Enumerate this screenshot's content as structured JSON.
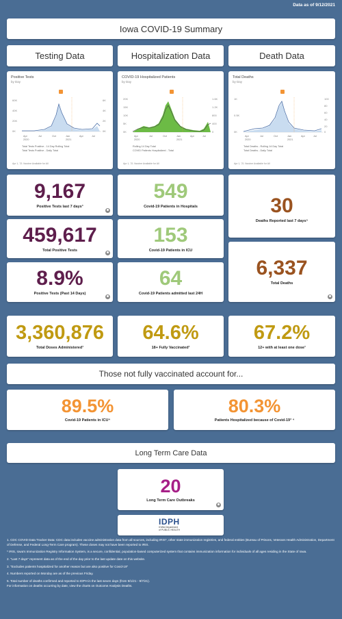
{
  "as_of": "Data as of 9/12/2021",
  "title": "Iowa COVID-19 Summary",
  "sections": {
    "testing": "Testing Data",
    "hospitalization": "Hospitalization Data",
    "death": "Death Data"
  },
  "charts": {
    "testing": {
      "title": "Positive Tests",
      "sub": "by Day",
      "legend1": "Total Tests Positive - 14 Day Rolling Total",
      "legend2": "Total Tests Positive - Daily Total",
      "note": "Apr 1, '21 Vaccine Available for All",
      "yleft": [
        "60K",
        "40K",
        "20K",
        "0K"
      ],
      "yright": [
        "6K",
        "4K",
        "2K",
        "0K"
      ],
      "xlabels": [
        "Apr\n2020",
        "Jul",
        "Oct",
        "Jan\n2021",
        "Apr",
        "Jul"
      ]
    },
    "hospital": {
      "title": "COVID-19 Hospitalized Patients",
      "sub": "by Day",
      "legend1": "Rolling 14 Day Total",
      "legend2": "COVID Patients Hospitalized - Total",
      "note": "Apr 1, '21 Vaccine Available for All",
      "yleft": [
        "20K",
        "15K",
        "10K",
        "5K",
        "0K"
      ],
      "yright": [
        "1.6K",
        "1.2K",
        "800",
        "400",
        "0"
      ],
      "xlabels": [
        "Apr\n2020",
        "Jul",
        "Oct",
        "Jan\n2021",
        "Apr",
        "Jul"
      ]
    },
    "death": {
      "title": "Total Deaths",
      "sub": "by Day",
      "legend1": "Total Deaths - Rolling 14 Day Total",
      "legend2": "Total Deaths - Daily Total",
      "note": "Apr 1, '21 Vaccine Available for All",
      "yleft": [
        "1K",
        "0.5K",
        "0K"
      ],
      "yright": [
        "100",
        "80",
        "60",
        "40",
        "20",
        "0"
      ],
      "xlabels": [
        "Apr\n2020",
        "Jul",
        "Oct",
        "Jan\n2021",
        "Apr",
        "Jul"
      ]
    }
  },
  "stats": {
    "pos7": {
      "value": "9,167",
      "label": "Positive Tests last 7 days³"
    },
    "totpos": {
      "value": "459,617",
      "label": "Total Positive Tests"
    },
    "pct14": {
      "value": "8.9%",
      "label": "Positive Tests (Past 14 Days)"
    },
    "hosp": {
      "value": "549",
      "label": "Covid-19 Patients in Hospitals"
    },
    "icu": {
      "value": "153",
      "label": "Covid-19 Patients in ICU"
    },
    "adm24": {
      "value": "64",
      "label": "Covid-19 Patients admitted last 24H"
    },
    "death7": {
      "value": "30",
      "label": "Deaths Reported last 7 days⁵"
    },
    "totdeath": {
      "value": "6,337",
      "label": "Total Deaths"
    },
    "doses": {
      "value": "3,360,876",
      "label": "Total Doses Administered¹"
    },
    "full": {
      "value": "64.6%",
      "label": "18+ Fully Vaccinated¹"
    },
    "one": {
      "value": "67.2%",
      "label": "12+ with at least one dose¹"
    }
  },
  "unvax_header": "Those not fully vaccinated account for...",
  "unvax": {
    "icu": {
      "value": "89.5%",
      "label": "Covid-19 Patients in ICU⁴"
    },
    "hosp": {
      "value": "80.3%",
      "label": "Patients Hospitalized because of Covid-19³ ⁴"
    }
  },
  "ltc_header": "Long Term Care Data",
  "ltc": {
    "value": "20",
    "label": "Long Term Care Outbreaks"
  },
  "logo": {
    "letters": "IDPH",
    "line1": "IOWA Department",
    "line2": "of PUBLIC HEALTH"
  },
  "notes": [
    "1. CDC COVID Data Tracker Data: CDC data includes vaccine administration data from all sources, including IRIS*, other state immunization registries, and federal entities (Bureau of Prisons, Veterans Health Administration, Department of Defense, and Federal Long-Term Care program). These doses may not have been reported to IRIS.",
    "* IRIS, Iowa's Immunization Registry Information System, is a secure, confidential, population-based computerized system that contains immunization information for individuals of all ages residing in the State of Iowa.",
    "2. \"Last 7 days\" represent data as of the end of the day prior to the last update date on this website.",
    "3. \"Excludes patients hospitalized for another reason but are also positive for Covid-19\"",
    "4. Numbers reported on Monday are as of the previous Friday.",
    "5. Total number of deaths confirmed and reported to IDPH in the last seven days (from 9/1/21 - 9/7/21).",
    "For information on deaths occurring by date, view the charts on Outcome Analysis Deaths."
  ],
  "colors": {
    "bg": "#4a6d94",
    "purple": "#5e1e4c",
    "green": "#9fc97a",
    "brown": "#9a5320",
    "gold": "#c09a12",
    "orange": "#f39434",
    "magenta": "#a61f87"
  }
}
